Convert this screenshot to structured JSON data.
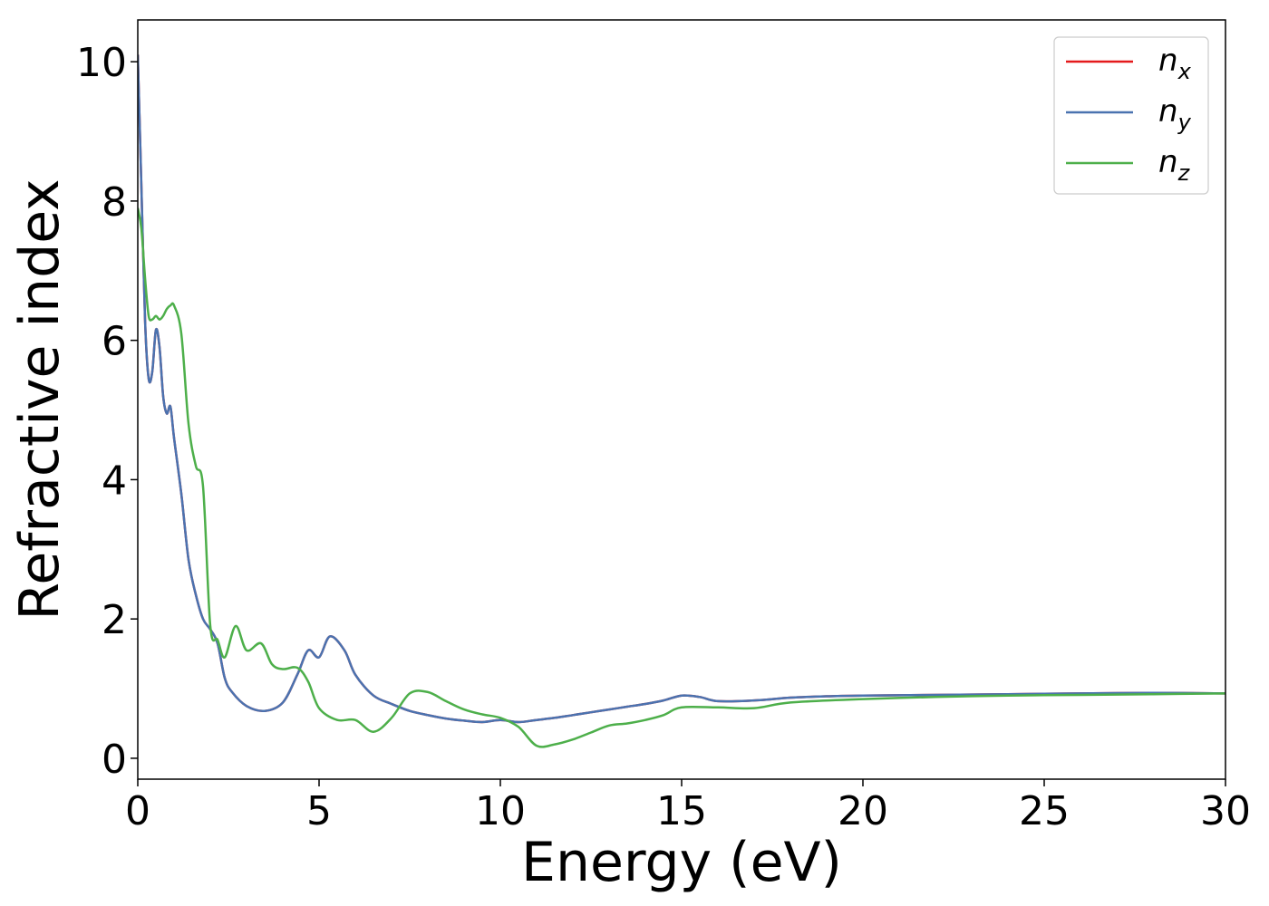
{
  "chart_data": {
    "type": "line",
    "title": "",
    "xlabel": "Energy (eV)",
    "ylabel": "Refractive index",
    "xlim": [
      0,
      30
    ],
    "ylim": [
      -0.3,
      10.6
    ],
    "xticks": [
      0,
      5,
      10,
      15,
      20,
      25,
      30
    ],
    "yticks": [
      0,
      2,
      4,
      6,
      8,
      10
    ],
    "grid": false,
    "legend_position": "top-right",
    "series": [
      {
        "name": "n_x",
        "label_main": "n",
        "label_sub": "x",
        "color": "#e41a1c",
        "x": [
          0.0,
          0.1,
          0.2,
          0.3,
          0.4,
          0.5,
          0.6,
          0.7,
          0.8,
          0.9,
          1.0,
          1.2,
          1.4,
          1.6,
          1.8,
          2.0,
          2.2,
          2.4,
          2.6,
          3.0,
          3.5,
          4.0,
          4.4,
          4.7,
          5.0,
          5.3,
          5.7,
          6.0,
          6.5,
          7.0,
          7.5,
          8.0,
          8.5,
          9.0,
          9.5,
          10.0,
          10.5,
          11.0,
          11.5,
          12.0,
          12.5,
          13.0,
          13.5,
          14.0,
          14.5,
          15.0,
          15.5,
          16.0,
          17.0,
          18.0,
          19.0,
          20.0,
          22.0,
          24.0,
          26.0,
          28.0,
          30.0
        ],
        "y": [
          10.1,
          8.2,
          6.3,
          5.45,
          5.55,
          6.15,
          5.9,
          5.2,
          4.95,
          5.05,
          4.6,
          3.8,
          2.85,
          2.35,
          2.0,
          1.85,
          1.65,
          1.15,
          0.95,
          0.75,
          0.68,
          0.8,
          1.2,
          1.55,
          1.45,
          1.75,
          1.55,
          1.2,
          0.9,
          0.78,
          0.68,
          0.62,
          0.57,
          0.54,
          0.52,
          0.55,
          0.52,
          0.55,
          0.58,
          0.62,
          0.66,
          0.7,
          0.74,
          0.78,
          0.83,
          0.9,
          0.88,
          0.82,
          0.83,
          0.87,
          0.89,
          0.9,
          0.91,
          0.92,
          0.93,
          0.94,
          0.93
        ]
      },
      {
        "name": "n_y",
        "label_main": "n",
        "label_sub": "y",
        "color": "#4a73b0",
        "x": [
          0.0,
          0.1,
          0.2,
          0.3,
          0.4,
          0.5,
          0.6,
          0.7,
          0.8,
          0.9,
          1.0,
          1.2,
          1.4,
          1.6,
          1.8,
          2.0,
          2.2,
          2.4,
          2.6,
          3.0,
          3.5,
          4.0,
          4.4,
          4.7,
          5.0,
          5.3,
          5.7,
          6.0,
          6.5,
          7.0,
          7.5,
          8.0,
          8.5,
          9.0,
          9.5,
          10.0,
          10.5,
          11.0,
          11.5,
          12.0,
          12.5,
          13.0,
          13.5,
          14.0,
          14.5,
          15.0,
          15.5,
          16.0,
          17.0,
          18.0,
          19.0,
          20.0,
          22.0,
          24.0,
          26.0,
          28.0,
          30.0
        ],
        "y": [
          10.1,
          8.2,
          6.3,
          5.45,
          5.55,
          6.15,
          5.9,
          5.2,
          4.95,
          5.05,
          4.6,
          3.8,
          2.85,
          2.35,
          2.0,
          1.85,
          1.65,
          1.15,
          0.95,
          0.75,
          0.68,
          0.8,
          1.2,
          1.55,
          1.45,
          1.75,
          1.55,
          1.2,
          0.9,
          0.78,
          0.68,
          0.62,
          0.57,
          0.54,
          0.52,
          0.55,
          0.52,
          0.55,
          0.58,
          0.62,
          0.66,
          0.7,
          0.74,
          0.78,
          0.83,
          0.9,
          0.88,
          0.82,
          0.83,
          0.87,
          0.89,
          0.9,
          0.91,
          0.92,
          0.93,
          0.94,
          0.93
        ]
      },
      {
        "name": "n_z",
        "label_main": "n",
        "label_sub": "z",
        "color": "#4daf4a",
        "x": [
          0.0,
          0.1,
          0.2,
          0.3,
          0.4,
          0.5,
          0.6,
          0.7,
          0.8,
          0.9,
          1.0,
          1.2,
          1.4,
          1.6,
          1.8,
          2.0,
          2.2,
          2.4,
          2.7,
          3.0,
          3.4,
          3.7,
          4.0,
          4.4,
          4.7,
          5.0,
          5.5,
          6.0,
          6.5,
          7.0,
          7.5,
          8.0,
          8.5,
          9.0,
          9.5,
          10.0,
          10.5,
          11.0,
          11.5,
          12.0,
          12.5,
          13.0,
          13.5,
          14.0,
          14.5,
          15.0,
          16.0,
          17.0,
          18.0,
          20.0,
          22.0,
          24.0,
          26.0,
          28.0,
          30.0
        ],
        "y": [
          7.9,
          7.6,
          6.9,
          6.35,
          6.3,
          6.35,
          6.3,
          6.35,
          6.45,
          6.5,
          6.5,
          6.1,
          4.8,
          4.2,
          3.9,
          1.9,
          1.7,
          1.45,
          1.9,
          1.55,
          1.65,
          1.35,
          1.28,
          1.3,
          1.1,
          0.72,
          0.55,
          0.55,
          0.38,
          0.58,
          0.93,
          0.95,
          0.82,
          0.7,
          0.63,
          0.58,
          0.45,
          0.18,
          0.2,
          0.27,
          0.37,
          0.47,
          0.5,
          0.55,
          0.62,
          0.73,
          0.73,
          0.72,
          0.8,
          0.85,
          0.88,
          0.9,
          0.91,
          0.92,
          0.93
        ]
      }
    ]
  }
}
